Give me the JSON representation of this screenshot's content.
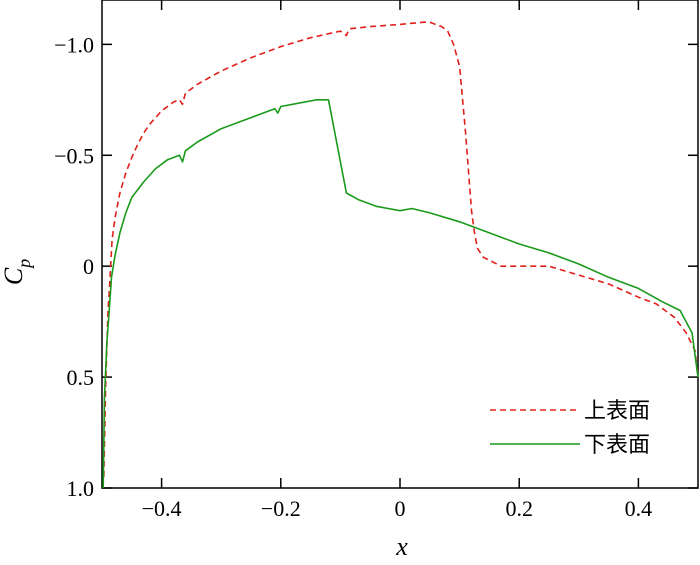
{
  "chart_data": {
    "type": "line",
    "xlabel": "x",
    "ylabel_main": "C",
    "ylabel_sub": "p",
    "xlim": [
      -0.5,
      0.5
    ],
    "ylim": [
      1.0,
      -1.2
    ],
    "y_inverted": true,
    "grid": false,
    "legend_position": "bottom-right",
    "xticks": [
      -0.4,
      -0.2,
      0,
      0.2,
      0.4
    ],
    "xtick_labels": [
      "−0.4",
      "−0.2",
      "0",
      "0.2",
      "0.4"
    ],
    "yticks": [
      -1.0,
      -0.5,
      0,
      0.5,
      1.0
    ],
    "ytick_labels": [
      "−1.0",
      "−0.5",
      "0",
      "0.5",
      "1.0"
    ],
    "series": [
      {
        "name": "上表面",
        "color": "#e0201b",
        "dash": "dashed",
        "x": [
          -0.497,
          -0.494,
          -0.49,
          -0.487,
          -0.485,
          -0.483,
          -0.478,
          -0.47,
          -0.46,
          -0.45,
          -0.44,
          -0.43,
          -0.42,
          -0.4,
          -0.38,
          -0.37,
          -0.365,
          -0.36,
          -0.34,
          -0.3,
          -0.25,
          -0.2,
          -0.15,
          -0.1,
          -0.09,
          -0.085,
          -0.05,
          0.0,
          0.04,
          0.05,
          0.07,
          0.08,
          0.09,
          0.1,
          0.11,
          0.12,
          0.125,
          0.13,
          0.14,
          0.17,
          0.2,
          0.25,
          0.3,
          0.35,
          0.4,
          0.43,
          0.46,
          0.48,
          0.495,
          0.5
        ],
        "y": [
          0.95,
          0.55,
          0.2,
          0.08,
          -0.02,
          -0.12,
          -0.22,
          -0.33,
          -0.42,
          -0.49,
          -0.55,
          -0.6,
          -0.64,
          -0.7,
          -0.74,
          -0.75,
          -0.73,
          -0.78,
          -0.82,
          -0.88,
          -0.94,
          -0.99,
          -1.03,
          -1.06,
          -1.04,
          -1.07,
          -1.08,
          -1.09,
          -1.1,
          -1.1,
          -1.08,
          -1.06,
          -1.0,
          -0.9,
          -0.6,
          -0.25,
          -0.15,
          -0.08,
          -0.04,
          0.0,
          0.0,
          0.0,
          0.04,
          0.08,
          0.14,
          0.17,
          0.23,
          0.3,
          0.38,
          0.5
        ]
      },
      {
        "name": "下表面",
        "color": "#1a9a1a",
        "dash": "solid",
        "x": [
          -0.498,
          -0.496,
          -0.492,
          -0.488,
          -0.484,
          -0.478,
          -0.47,
          -0.46,
          -0.45,
          -0.43,
          -0.41,
          -0.39,
          -0.37,
          -0.365,
          -0.36,
          -0.34,
          -0.3,
          -0.25,
          -0.21,
          -0.205,
          -0.2,
          -0.14,
          -0.12,
          -0.1,
          -0.09,
          -0.07,
          -0.04,
          -0.02,
          0.0,
          0.02,
          0.05,
          0.1,
          0.15,
          0.2,
          0.25,
          0.3,
          0.35,
          0.4,
          0.44,
          0.47,
          0.49,
          0.5
        ],
        "y": [
          1.0,
          0.6,
          0.35,
          0.2,
          0.05,
          -0.05,
          -0.15,
          -0.24,
          -0.31,
          -0.38,
          -0.44,
          -0.48,
          -0.5,
          -0.47,
          -0.52,
          -0.56,
          -0.62,
          -0.67,
          -0.71,
          -0.69,
          -0.72,
          -0.75,
          -0.75,
          -0.47,
          -0.33,
          -0.3,
          -0.27,
          -0.26,
          -0.25,
          -0.26,
          -0.24,
          -0.2,
          -0.15,
          -0.1,
          -0.06,
          -0.01,
          0.05,
          0.1,
          0.16,
          0.2,
          0.3,
          0.5
        ]
      }
    ]
  }
}
